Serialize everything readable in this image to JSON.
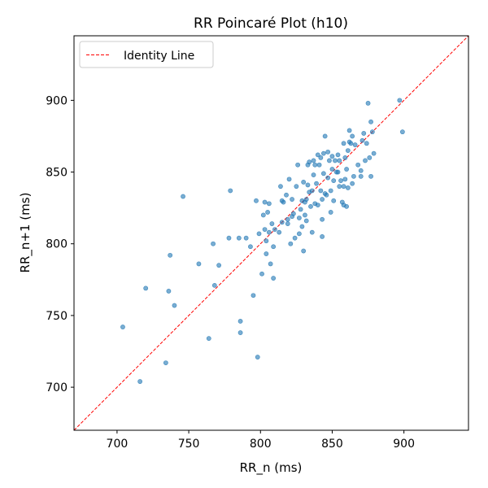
{
  "chart_data": {
    "type": "scatter",
    "title": "RR Poincaré Plot (h10)",
    "xlabel": "RR_n (ms)",
    "ylabel": "RR_n+1 (ms)",
    "xlim": [
      670,
      945
    ],
    "ylim": [
      670,
      945
    ],
    "x_ticks": [
      700,
      750,
      800,
      850,
      900
    ],
    "y_ticks": [
      700,
      750,
      800,
      850,
      900
    ],
    "grid": false,
    "legend_position": "top-left",
    "legend": [
      {
        "label": "Identity Line",
        "style": "dashed",
        "color": "#ff0000"
      }
    ],
    "point_color": "#1f77b4",
    "series": [
      {
        "points": [
          [
            704,
            742
          ],
          [
            716,
            704
          ],
          [
            720,
            769
          ],
          [
            734,
            717
          ],
          [
            736,
            767
          ],
          [
            737,
            792
          ],
          [
            740,
            757
          ],
          [
            746,
            833
          ],
          [
            757,
            786
          ],
          [
            764,
            734
          ],
          [
            767,
            800
          ],
          [
            768,
            771
          ],
          [
            771,
            785
          ],
          [
            778,
            804
          ],
          [
            779,
            837
          ],
          [
            785,
            804
          ],
          [
            786,
            746
          ],
          [
            786,
            738
          ],
          [
            790,
            804
          ],
          [
            793,
            798
          ],
          [
            795,
            764
          ],
          [
            797,
            830
          ],
          [
            798,
            721
          ],
          [
            799,
            807
          ],
          [
            801,
            779
          ],
          [
            802,
            820
          ],
          [
            803,
            810
          ],
          [
            803,
            829
          ],
          [
            804,
            793
          ],
          [
            804,
            802
          ],
          [
            805,
            822
          ],
          [
            806,
            828
          ],
          [
            806,
            808
          ],
          [
            807,
            786
          ],
          [
            808,
            814
          ],
          [
            809,
            776
          ],
          [
            809,
            798
          ],
          [
            810,
            810
          ],
          [
            813,
            808
          ],
          [
            814,
            840
          ],
          [
            815,
            815
          ],
          [
            815,
            830
          ],
          [
            816,
            829
          ],
          [
            818,
            834
          ],
          [
            819,
            814
          ],
          [
            819,
            817
          ],
          [
            820,
            845
          ],
          [
            821,
            800
          ],
          [
            822,
            819
          ],
          [
            822,
            831
          ],
          [
            823,
            821
          ],
          [
            824,
            804
          ],
          [
            825,
            840
          ],
          [
            826,
            855
          ],
          [
            827,
            807
          ],
          [
            827,
            818
          ],
          [
            828,
            824
          ],
          [
            829,
            830
          ],
          [
            829,
            812
          ],
          [
            830,
            795
          ],
          [
            830,
            843
          ],
          [
            831,
            829
          ],
          [
            831,
            820
          ],
          [
            832,
            831
          ],
          [
            832,
            816
          ],
          [
            833,
            855
          ],
          [
            833,
            841
          ],
          [
            834,
            836
          ],
          [
            834,
            857
          ],
          [
            835,
            826
          ],
          [
            836,
            837
          ],
          [
            836,
            808
          ],
          [
            837,
            848
          ],
          [
            837,
            858
          ],
          [
            838,
            828
          ],
          [
            838,
            855
          ],
          [
            839,
            842
          ],
          [
            840,
            862
          ],
          [
            840,
            827
          ],
          [
            841,
            855
          ],
          [
            842,
            860
          ],
          [
            842,
            837
          ],
          [
            843,
            831
          ],
          [
            843,
            817
          ],
          [
            843,
            805
          ],
          [
            844,
            863
          ],
          [
            844,
            849
          ],
          [
            845,
            835
          ],
          [
            845,
            875
          ],
          [
            846,
            834
          ],
          [
            847,
            846
          ],
          [
            847,
            864
          ],
          [
            848,
            858
          ],
          [
            849,
            822
          ],
          [
            849,
            837
          ],
          [
            850,
            852
          ],
          [
            850,
            861
          ],
          [
            851,
            844
          ],
          [
            851,
            830
          ],
          [
            852,
            858
          ],
          [
            853,
            850
          ],
          [
            854,
            862
          ],
          [
            854,
            850
          ],
          [
            855,
            840
          ],
          [
            855,
            858
          ],
          [
            856,
            844
          ],
          [
            857,
            829
          ],
          [
            858,
            870
          ],
          [
            858,
            840
          ],
          [
            858,
            827
          ],
          [
            859,
            845
          ],
          [
            859,
            860
          ],
          [
            860,
            852
          ],
          [
            860,
            826
          ],
          [
            861,
            865
          ],
          [
            861,
            839
          ],
          [
            862,
            871
          ],
          [
            862,
            879
          ],
          [
            863,
            870
          ],
          [
            864,
            875
          ],
          [
            864,
            842
          ],
          [
            865,
            847
          ],
          [
            866,
            869
          ],
          [
            868,
            855
          ],
          [
            870,
            851
          ],
          [
            870,
            847
          ],
          [
            871,
            872
          ],
          [
            872,
            877
          ],
          [
            873,
            858
          ],
          [
            874,
            870
          ],
          [
            875,
            898
          ],
          [
            876,
            860
          ],
          [
            877,
            847
          ],
          [
            877,
            885
          ],
          [
            878,
            878
          ],
          [
            879,
            863
          ],
          [
            897,
            900
          ],
          [
            899,
            878
          ]
        ]
      }
    ]
  }
}
